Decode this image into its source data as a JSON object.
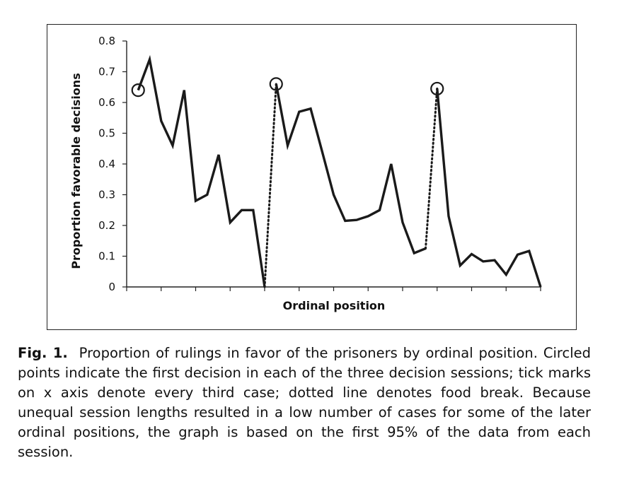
{
  "chart_data": {
    "type": "line",
    "title": "",
    "xlabel": "Ordinal position",
    "ylabel": "Proportion favorable decisions",
    "ylim": [
      0,
      0.8
    ],
    "yticks": [
      "0",
      "0.1",
      "0.2",
      "0.3",
      "0.4",
      "0.5",
      "0.6",
      "0.7",
      "0.8"
    ],
    "xlim": [
      0,
      36
    ],
    "x_tick_every": 3,
    "grid": false,
    "series": [
      {
        "segment": 1,
        "points": [
          [
            1,
            0.64
          ],
          [
            2,
            0.74
          ],
          [
            3,
            0.54
          ],
          [
            4,
            0.46
          ],
          [
            5,
            0.64
          ],
          [
            6,
            0.28
          ],
          [
            7,
            0.3
          ],
          [
            8,
            0.43
          ],
          [
            9,
            0.21
          ],
          [
            10,
            0.25
          ],
          [
            11,
            0.25
          ],
          [
            12,
            0.0
          ]
        ]
      },
      {
        "segment": 2,
        "points": [
          [
            13,
            0.66
          ],
          [
            14,
            0.46
          ],
          [
            15,
            0.57
          ],
          [
            16,
            0.58
          ],
          [
            17,
            0.44
          ],
          [
            18,
            0.3
          ],
          [
            19,
            0.215
          ],
          [
            20,
            0.218
          ],
          [
            21,
            0.23
          ],
          [
            22,
            0.25
          ],
          [
            23,
            0.4
          ],
          [
            24,
            0.21
          ],
          [
            25,
            0.11
          ],
          [
            26,
            0.125
          ]
        ]
      },
      {
        "segment": 3,
        "points": [
          [
            27,
            0.645
          ],
          [
            28,
            0.23
          ],
          [
            29,
            0.07
          ],
          [
            30,
            0.107
          ],
          [
            31,
            0.083
          ],
          [
            32,
            0.087
          ],
          [
            33,
            0.04
          ],
          [
            34,
            0.105
          ],
          [
            35,
            0.117
          ],
          [
            36,
            0.0
          ]
        ]
      }
    ],
    "food_breaks": [
      {
        "from": [
          12,
          0.0
        ],
        "to": [
          13,
          0.66
        ]
      },
      {
        "from": [
          26,
          0.125
        ],
        "to": [
          27,
          0.645
        ]
      }
    ],
    "circled_points": [
      [
        1,
        0.64
      ],
      [
        13,
        0.66
      ],
      [
        27,
        0.645
      ]
    ],
    "colors": {
      "line": "#1a1a1a"
    }
  },
  "caption": {
    "label": "Fig. 1.",
    "text": "Proportion of rulings in favor of the prisoners by ordinal position. Circled points indicate the first decision in each of the three decision sessions; tick marks on x axis denote every third case; dotted line denotes food break. Because unequal session lengths resulted in a low number of cases for some of the later ordinal positions, the graph is based on the first 95% of the data from each session."
  }
}
